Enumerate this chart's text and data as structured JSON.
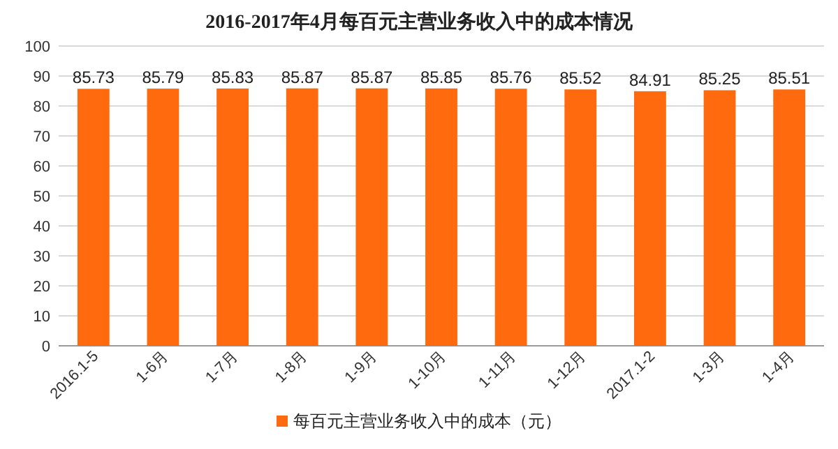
{
  "chart_data": {
    "type": "bar",
    "title": "2016-2017年4月每百元主营业务收入中的成本情况",
    "categories": [
      "2016.1-5",
      "1-6月",
      "1-7月",
      "1-8月",
      "1-9月",
      "1-10月",
      "1-11月",
      "1-12月",
      "2017.1-2",
      "1-3月",
      "1-4月"
    ],
    "series": [
      {
        "name": "每百元主营业务收入中的成本（元）",
        "color": "#ff6a0e",
        "values": [
          85.73,
          85.79,
          85.83,
          85.87,
          85.87,
          85.85,
          85.76,
          85.52,
          84.91,
          85.25,
          85.51
        ]
      }
    ],
    "ylim": [
      0,
      100
    ],
    "yticks": [
      0,
      10,
      20,
      30,
      40,
      50,
      60,
      70,
      80,
      90,
      100
    ],
    "grid": "y",
    "data_labels": true,
    "legend": "bottom"
  }
}
